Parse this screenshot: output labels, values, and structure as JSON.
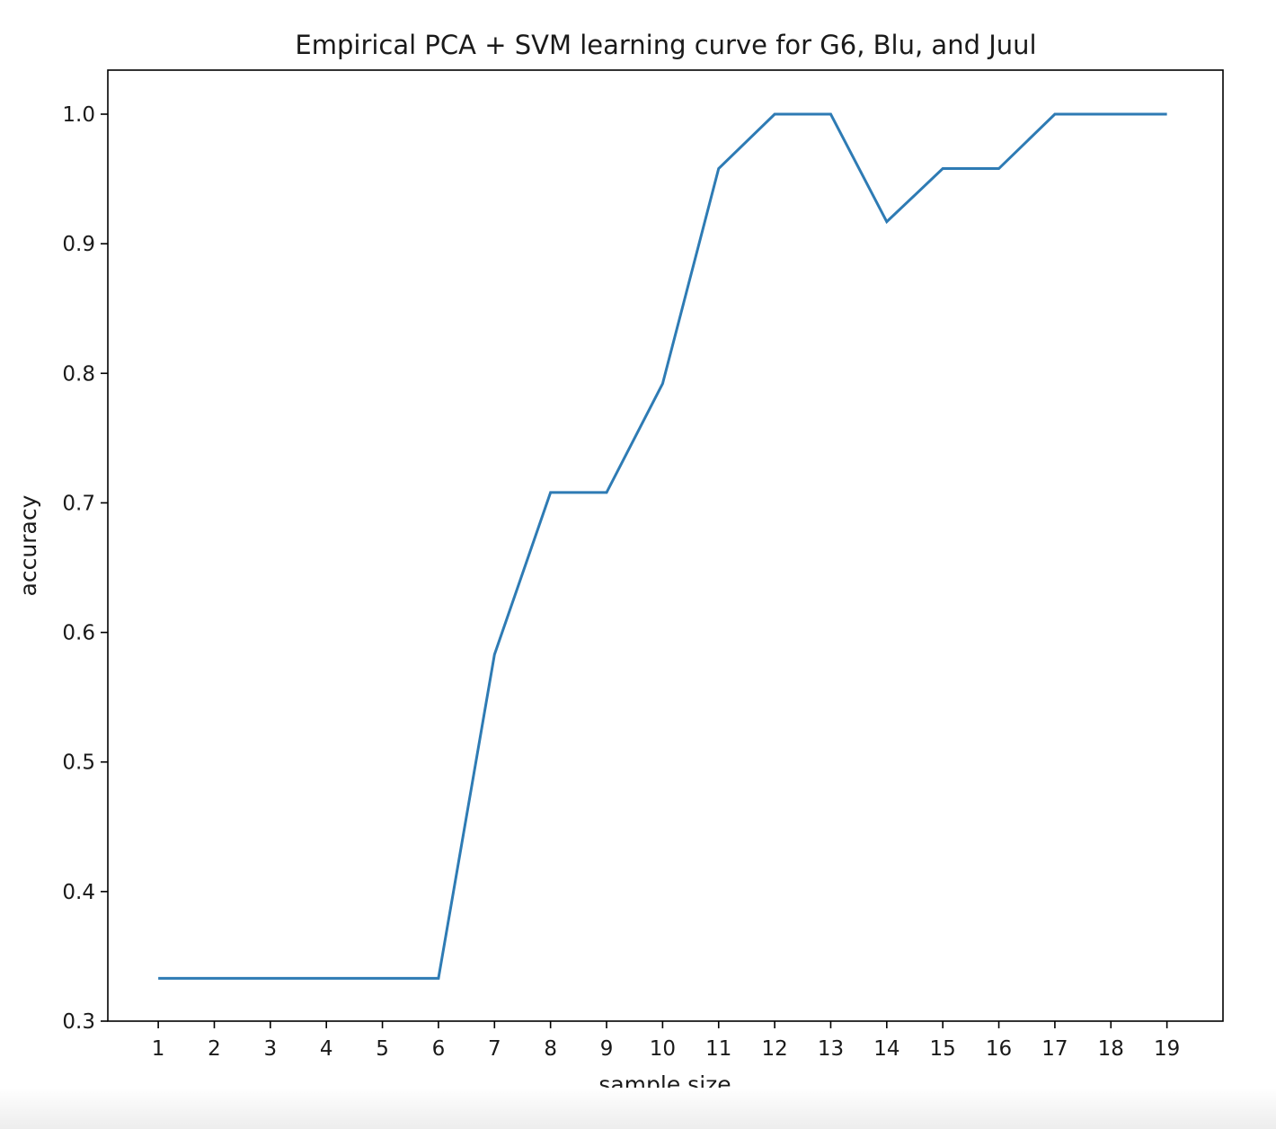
{
  "chart_data": {
    "type": "line",
    "title": "Empirical PCA + SVM learning curve for G6, Blu, and Juul",
    "xlabel": "sample size",
    "ylabel": "accuracy",
    "x": [
      1,
      2,
      3,
      4,
      5,
      6,
      7,
      8,
      9,
      10,
      11,
      12,
      13,
      14,
      15,
      16,
      17,
      18,
      19
    ],
    "series": [
      {
        "values": [
          0.333,
          0.333,
          0.333,
          0.333,
          0.333,
          0.333,
          0.583,
          0.708,
          0.708,
          0.792,
          0.958,
          1.0,
          1.0,
          0.917,
          0.958,
          0.958,
          1.0,
          1.0,
          1.0
        ],
        "color": "#2e7bb4"
      }
    ],
    "xticks": [
      "1",
      "2",
      "3",
      "4",
      "5",
      "6",
      "7",
      "8",
      "9",
      "10",
      "11",
      "12",
      "13",
      "14",
      "15",
      "16",
      "17",
      "18",
      "19"
    ],
    "yticks": [
      "0.3",
      "0.4",
      "0.5",
      "0.6",
      "0.7",
      "0.8",
      "0.9",
      "1.0"
    ],
    "xlim": [
      0.1,
      20.0
    ],
    "ylim": [
      0.3,
      1.034
    ],
    "grid": false,
    "legend": "none"
  }
}
